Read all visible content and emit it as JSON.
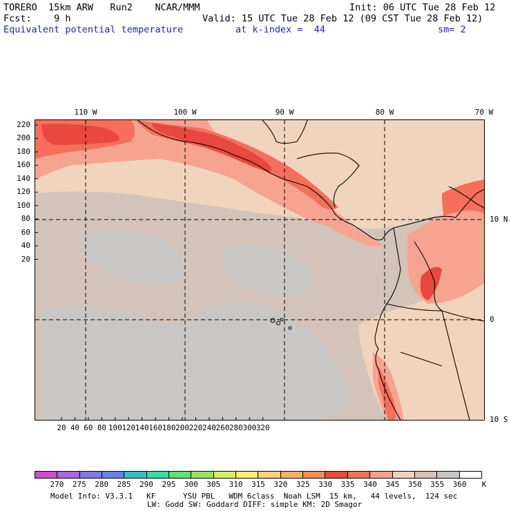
{
  "header": {
    "model": "TORERO  15km ARW   Run2    NCAR/MMM",
    "init": "Init: 06 UTC Tue 28 Feb 12",
    "fcst": "Fcst:    9 h",
    "valid": "Valid: 15 UTC Tue 28 Feb 12 (09 CST Tue 28 Feb 12)",
    "field": "Equivalent potential temperature",
    "level": "at k-index =  44",
    "smooth": "sm= 2"
  },
  "map": {
    "left_axis": [
      "220",
      "200",
      "180",
      "160",
      "140",
      "120",
      "100",
      "80",
      "60",
      "40",
      "20"
    ],
    "bottom_axis": [
      "20",
      "40",
      "60",
      "80",
      "100",
      "120",
      "140",
      "160",
      "180",
      "200",
      "220",
      "240",
      "260",
      "280",
      "300",
      "320"
    ],
    "top_lon_labels": [
      "110 W",
      "100 W",
      "90 W",
      "80 W",
      "70 W"
    ],
    "right_lat_labels": [
      "10 N",
      "0",
      "10 S"
    ],
    "colors": {
      "c330": "#e8483f",
      "c335": "#f56f5c",
      "c340": "#f6a390",
      "c345": "#f1d4bd",
      "c350": "#d4c3b8",
      "c355": "#c9c7c5",
      "border": "#000000"
    }
  },
  "colorbar": {
    "unit": "K",
    "ticks": [
      "270",
      "275",
      "280",
      "285",
      "290",
      "295",
      "300",
      "305",
      "310",
      "315",
      "320",
      "325",
      "330",
      "335",
      "340",
      "345",
      "350",
      "355",
      "360"
    ],
    "swatches": [
      "#c84fc8",
      "#a56ad8",
      "#8079e6",
      "#6a82e8",
      "#33bfbf",
      "#2fe0a8",
      "#5fe07a",
      "#9be066",
      "#d8ec6e",
      "#f7ed79",
      "#f8d27e",
      "#f7b06e",
      "#f38c5a",
      "#f0473f",
      "#f56f5c",
      "#f6a390",
      "#f1d4bd",
      "#d4c3b8",
      "#c9c7c5",
      "#ffffff"
    ]
  },
  "footer": {
    "line1": "Model Info: V3.3.1   KF      YSU PBL   WDM 6class  Noah LSM  15 km,   44 levels,  124 sec",
    "line2": "LW: Godd SW: Goddard DIFF: simple KM: 2D Smagor"
  }
}
